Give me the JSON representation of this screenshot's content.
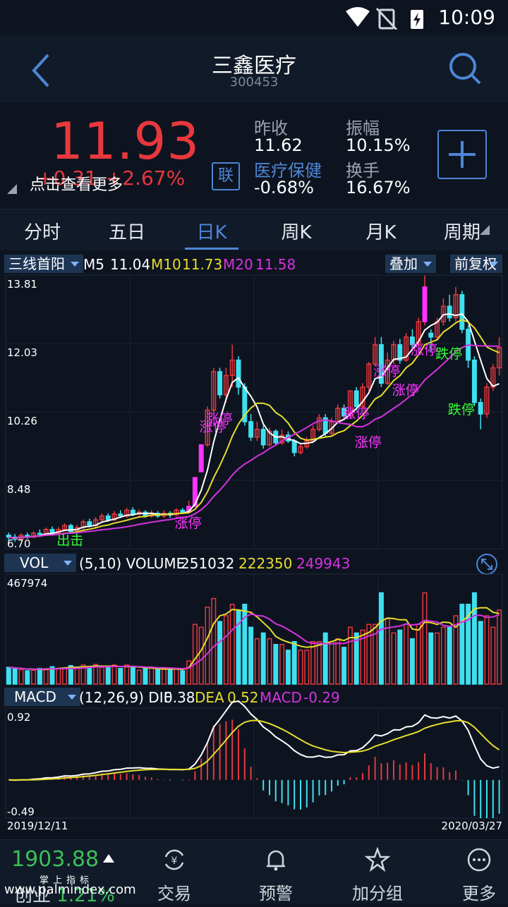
{
  "status": {
    "time": "10:09"
  },
  "header": {
    "title": "三鑫医疗",
    "code": "300453"
  },
  "quote": {
    "price": "11.93",
    "change": "+0.31",
    "change_pct": "+2.67%",
    "tip": "点击查看更多",
    "lian_label": "联",
    "prev_close_label": "昨收",
    "prev_close": "11.62",
    "sector_label": "医疗保健",
    "sector_chg": "-0.68%",
    "amplitude_label": "振幅",
    "amplitude": "10.15%",
    "turnover_label": "换手",
    "turnover": "16.67%"
  },
  "tabs": [
    "分时",
    "五日",
    "日K",
    "周K",
    "月K",
    "周期"
  ],
  "kline": {
    "selector": "三线首阳",
    "overlay": "叠加",
    "adjust": "前复权",
    "ma5_label": "M5",
    "ma5": "11.04",
    "ma10_label": "M10",
    "ma10": "11.73",
    "ma20_label": "M20",
    "ma20": "11.58",
    "y_ticks": [
      "13.81",
      "12.03",
      "10.26",
      "8.48",
      "6.70"
    ],
    "ann_up": "涨停",
    "ann_down": "跌停",
    "ann_out": "出击"
  },
  "volume": {
    "selector": "VOL",
    "params": "(5,10) VOLUME",
    "vol": "251032",
    "ma5": "222350",
    "ma10": "249943",
    "max": "467974"
  },
  "macd": {
    "selector": "MACD",
    "params": "(12,26,9) DIF",
    "dif": "0.38",
    "dea_label": "DEA",
    "dea": "0.52",
    "macd_label": "MACD",
    "macd": "-0.29",
    "top": "0.92",
    "bottom": "-0.49",
    "date_start": "2019/12/11",
    "date_end": "2020/03/27"
  },
  "bottom": {
    "index_value": "1903.88",
    "index_sub": "掌上指标",
    "index_label": "创业",
    "index_pct": "1.21%",
    "watermark": "www.palmindex.com",
    "nav": [
      "交易",
      "预警",
      "加分组",
      "更多"
    ]
  },
  "colors": {
    "up": "#e8383d",
    "down": "#3ee0f0",
    "ma5": "#ffffff",
    "ma10": "#e6dd2c",
    "ma20": "#d633e0",
    "accent": "#4d86d6",
    "limit": "#ff33ff"
  },
  "chart_data": {
    "type": "candlestick",
    "y_range": [
      6.7,
      13.81
    ],
    "candles": [
      [
        7.05,
        7.0,
        7.12,
        6.9
      ],
      [
        7.0,
        6.95,
        7.08,
        6.88
      ],
      [
        6.95,
        7.05,
        7.1,
        6.92
      ],
      [
        7.05,
        7.0,
        7.12,
        6.96
      ],
      [
        7.0,
        7.1,
        7.15,
        6.98
      ],
      [
        7.1,
        7.08,
        7.2,
        7.0
      ],
      [
        7.08,
        7.2,
        7.25,
        7.05
      ],
      [
        7.2,
        7.1,
        7.28,
        7.05
      ],
      [
        7.1,
        7.2,
        7.26,
        7.06
      ],
      [
        7.2,
        7.3,
        7.36,
        7.15
      ],
      [
        7.3,
        7.15,
        7.35,
        7.1
      ],
      [
        7.15,
        7.25,
        7.32,
        7.1
      ],
      [
        7.25,
        7.4,
        7.46,
        7.2
      ],
      [
        7.4,
        7.3,
        7.48,
        7.25
      ],
      [
        7.3,
        7.45,
        7.52,
        7.25
      ],
      [
        7.45,
        7.55,
        7.62,
        7.4
      ],
      [
        7.55,
        7.45,
        7.62,
        7.4
      ],
      [
        7.45,
        7.6,
        7.68,
        7.42
      ],
      [
        7.6,
        7.55,
        7.7,
        7.5
      ],
      [
        7.55,
        7.7,
        7.76,
        7.5
      ],
      [
        7.7,
        7.6,
        7.78,
        7.55
      ],
      [
        7.6,
        7.65,
        7.72,
        7.55
      ],
      [
        7.65,
        7.55,
        7.7,
        7.5
      ],
      [
        7.55,
        7.62,
        7.7,
        7.5
      ],
      [
        7.62,
        7.55,
        7.68,
        7.5
      ],
      [
        7.55,
        7.62,
        7.7,
        7.5
      ],
      [
        7.62,
        7.58,
        7.68,
        7.5
      ],
      [
        7.58,
        7.7,
        7.75,
        7.55
      ],
      [
        7.7,
        7.65,
        7.76,
        7.6
      ],
      [
        7.65,
        7.8,
        7.95,
        7.62
      ],
      [
        7.8,
        8.55,
        8.55,
        7.8
      ],
      [
        8.7,
        9.4,
        9.4,
        8.7
      ],
      [
        9.4,
        10.3,
        10.4,
        9.35
      ],
      [
        10.3,
        11.3,
        11.4,
        10.2
      ],
      [
        11.3,
        10.7,
        11.4,
        10.6
      ],
      [
        10.7,
        11.2,
        11.4,
        10.5
      ],
      [
        11.2,
        11.6,
        12.0,
        10.9
      ],
      [
        11.6,
        10.9,
        11.7,
        10.7
      ],
      [
        10.9,
        10.0,
        11.0,
        9.9
      ],
      [
        10.0,
        9.6,
        10.2,
        9.5
      ],
      [
        9.6,
        9.8,
        10.0,
        9.5
      ],
      [
        9.8,
        9.4,
        9.9,
        9.3
      ],
      [
        9.4,
        9.75,
        9.85,
        9.35
      ],
      [
        9.75,
        9.45,
        9.8,
        9.4
      ],
      [
        9.45,
        9.65,
        9.8,
        9.4
      ],
      [
        9.65,
        9.5,
        9.75,
        9.45
      ],
      [
        9.5,
        9.2,
        9.55,
        9.1
      ],
      [
        9.2,
        9.35,
        9.45,
        9.15
      ],
      [
        9.35,
        9.5,
        9.6,
        9.3
      ],
      [
        9.5,
        9.8,
        9.9,
        9.45
      ],
      [
        9.8,
        10.1,
        10.2,
        9.75
      ],
      [
        10.1,
        9.7,
        10.2,
        9.6
      ],
      [
        9.7,
        10.0,
        10.1,
        9.65
      ],
      [
        10.0,
        10.35,
        10.45,
        9.95
      ],
      [
        10.35,
        10.15,
        10.45,
        10.1
      ],
      [
        10.15,
        10.8,
        10.8,
        10.1
      ],
      [
        10.8,
        10.4,
        10.9,
        10.3
      ],
      [
        10.4,
        10.9,
        11.0,
        10.35
      ],
      [
        10.9,
        11.5,
        11.55,
        10.8
      ],
      [
        11.5,
        12.0,
        12.2,
        11.45
      ],
      [
        12.0,
        11.0,
        12.2,
        10.9
      ],
      [
        11.0,
        11.6,
        11.8,
        10.95
      ],
      [
        11.6,
        12.0,
        12.1,
        11.5
      ],
      [
        12.0,
        11.6,
        12.15,
        11.5
      ],
      [
        11.6,
        12.2,
        12.3,
        11.55
      ],
      [
        12.2,
        12.0,
        12.4,
        11.9
      ],
      [
        12.0,
        12.6,
        12.7,
        11.95
      ],
      [
        12.6,
        13.5,
        13.8,
        12.5
      ],
      [
        12.3,
        12.2,
        12.4,
        11.8
      ],
      [
        12.2,
        12.6,
        12.7,
        12.1
      ],
      [
        12.6,
        13.0,
        13.2,
        12.5
      ],
      [
        13.0,
        12.7,
        13.3,
        12.6
      ],
      [
        12.7,
        13.3,
        13.5,
        12.6
      ],
      [
        13.3,
        12.4,
        13.4,
        12.3
      ],
      [
        12.4,
        11.6,
        12.5,
        11.4
      ],
      [
        11.6,
        10.5,
        11.7,
        10.4
      ],
      [
        10.5,
        10.2,
        10.6,
        9.8
      ],
      [
        10.2,
        10.9,
        11.0,
        10.1
      ],
      [
        10.9,
        11.4,
        11.5,
        10.8
      ],
      [
        11.4,
        11.93,
        12.2,
        11.2
      ]
    ]
  }
}
